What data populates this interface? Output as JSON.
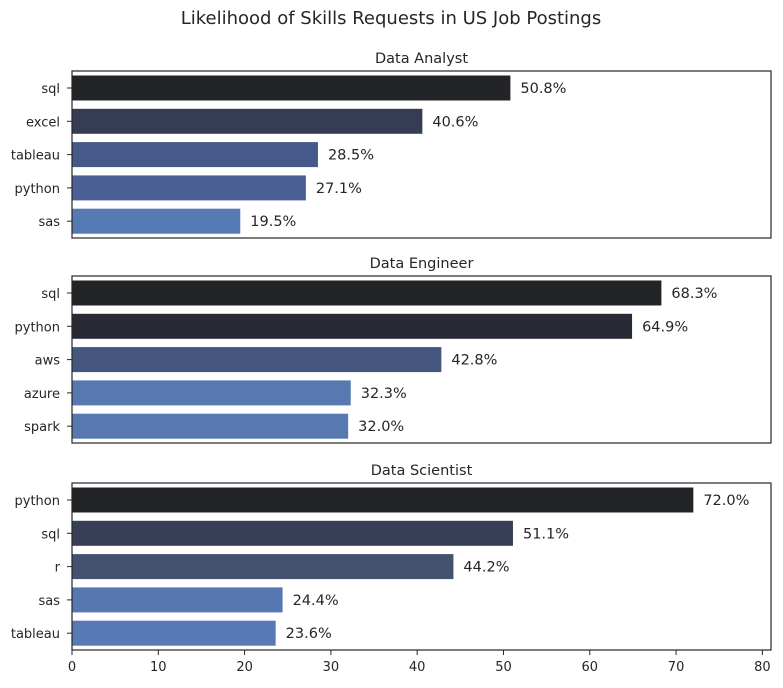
{
  "title": "Likelihood of Skills Requests in US Job Postings",
  "chart_data": [
    {
      "type": "bar",
      "orientation": "horizontal",
      "title": "Data Analyst",
      "categories": [
        "sql",
        "excel",
        "tableau",
        "python",
        "sas"
      ],
      "values": [
        50.8,
        40.6,
        28.5,
        27.1,
        19.5
      ],
      "labels": [
        "50.8%",
        "40.6%",
        "28.5%",
        "27.1%",
        "19.5%"
      ],
      "colors": [
        "#232428",
        "#343d53",
        "#45598a",
        "#4a5f94",
        "#5579b3"
      ],
      "xlim": [
        0,
        81
      ],
      "xticks_visible": false
    },
    {
      "type": "bar",
      "orientation": "horizontal",
      "title": "Data Engineer",
      "categories": [
        "sql",
        "python",
        "aws",
        "azure",
        "spark"
      ],
      "values": [
        68.3,
        64.9,
        42.8,
        32.3,
        32.0
      ],
      "labels": [
        "68.3%",
        "64.9%",
        "42.8%",
        "32.3%",
        "32.0%"
      ],
      "colors": [
        "#232428",
        "#282b35",
        "#45577e",
        "#5779b0",
        "#5779b0"
      ],
      "xlim": [
        0,
        81
      ],
      "xticks_visible": false
    },
    {
      "type": "bar",
      "orientation": "horizontal",
      "title": "Data Scientist",
      "categories": [
        "python",
        "sql",
        "r",
        "sas",
        "tableau"
      ],
      "values": [
        72.0,
        51.1,
        44.2,
        24.4,
        23.6
      ],
      "labels": [
        "72.0%",
        "51.1%",
        "44.2%",
        "24.4%",
        "23.6%"
      ],
      "colors": [
        "#232428",
        "#363f56",
        "#43526f",
        "#5677b0",
        "#5779b4"
      ],
      "xlim": [
        0,
        81
      ],
      "xticks": [
        0,
        10,
        20,
        30,
        40,
        50,
        60,
        70,
        80
      ],
      "xticks_visible": true
    }
  ]
}
